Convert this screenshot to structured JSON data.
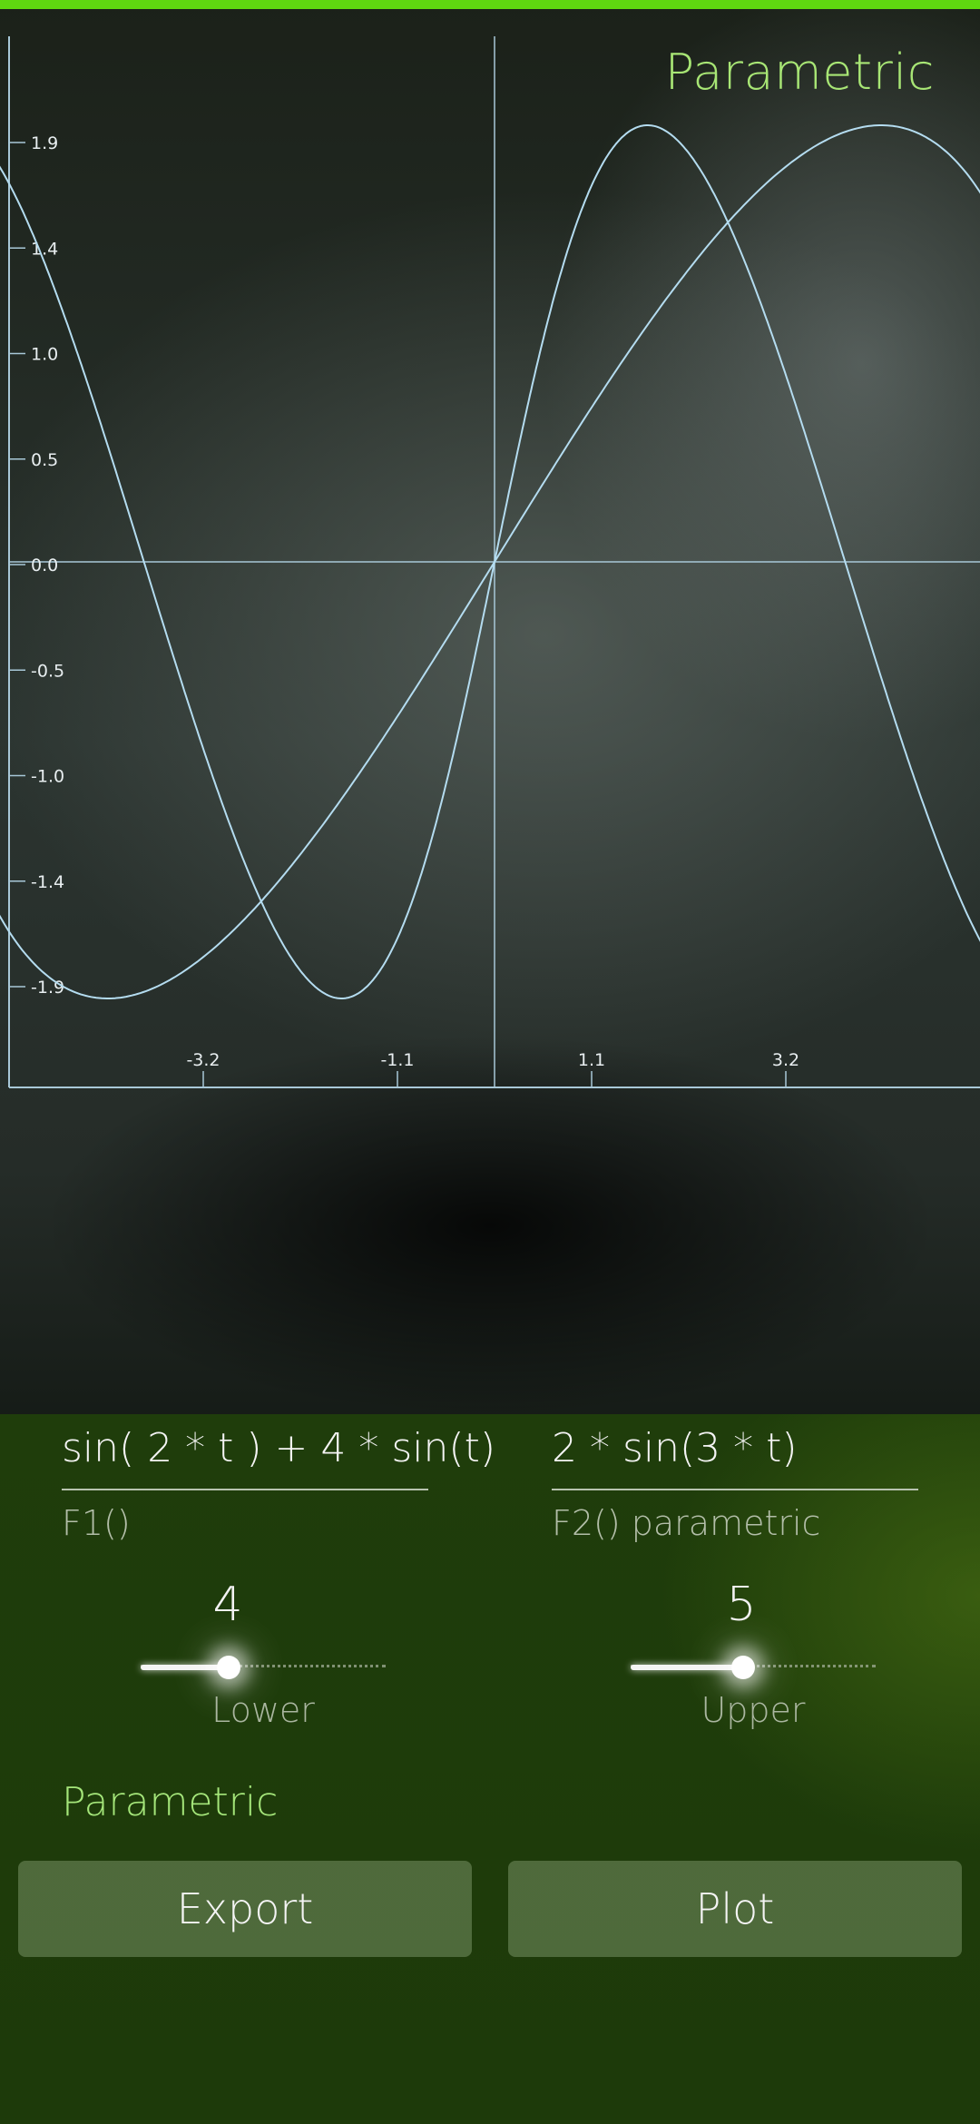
{
  "plot": {
    "title": "Parametric",
    "x_ticks": [
      "-3.2",
      "-1.1",
      "1.1",
      "3.2"
    ],
    "y_ticks": [
      "1.9",
      "1.4",
      "1.0",
      "0.5",
      "0.0",
      "-0.5",
      "-1.0",
      "-1.4",
      "-1.9"
    ],
    "curve_color": "#b4dcf0",
    "axis_color": "#a8c8d8"
  },
  "functions": {
    "f1": {
      "expression": "sin( 2 * t ) + 4 * sin(t)",
      "label": "F1()"
    },
    "f2": {
      "expression": "2 * sin(3 * t)",
      "label": "F2() parametric"
    }
  },
  "sliders": {
    "lower": {
      "value": "4",
      "label": "Lower",
      "fraction": 0.36
    },
    "upper": {
      "value": "5",
      "label": "Upper",
      "fraction": 0.46
    }
  },
  "mode_label": "Parametric",
  "buttons": {
    "export": "Export",
    "plot": "Plot"
  },
  "colors": {
    "accent": "#5fd810",
    "accent_text": "#a8e675",
    "panel": "#1f3d0b"
  }
}
